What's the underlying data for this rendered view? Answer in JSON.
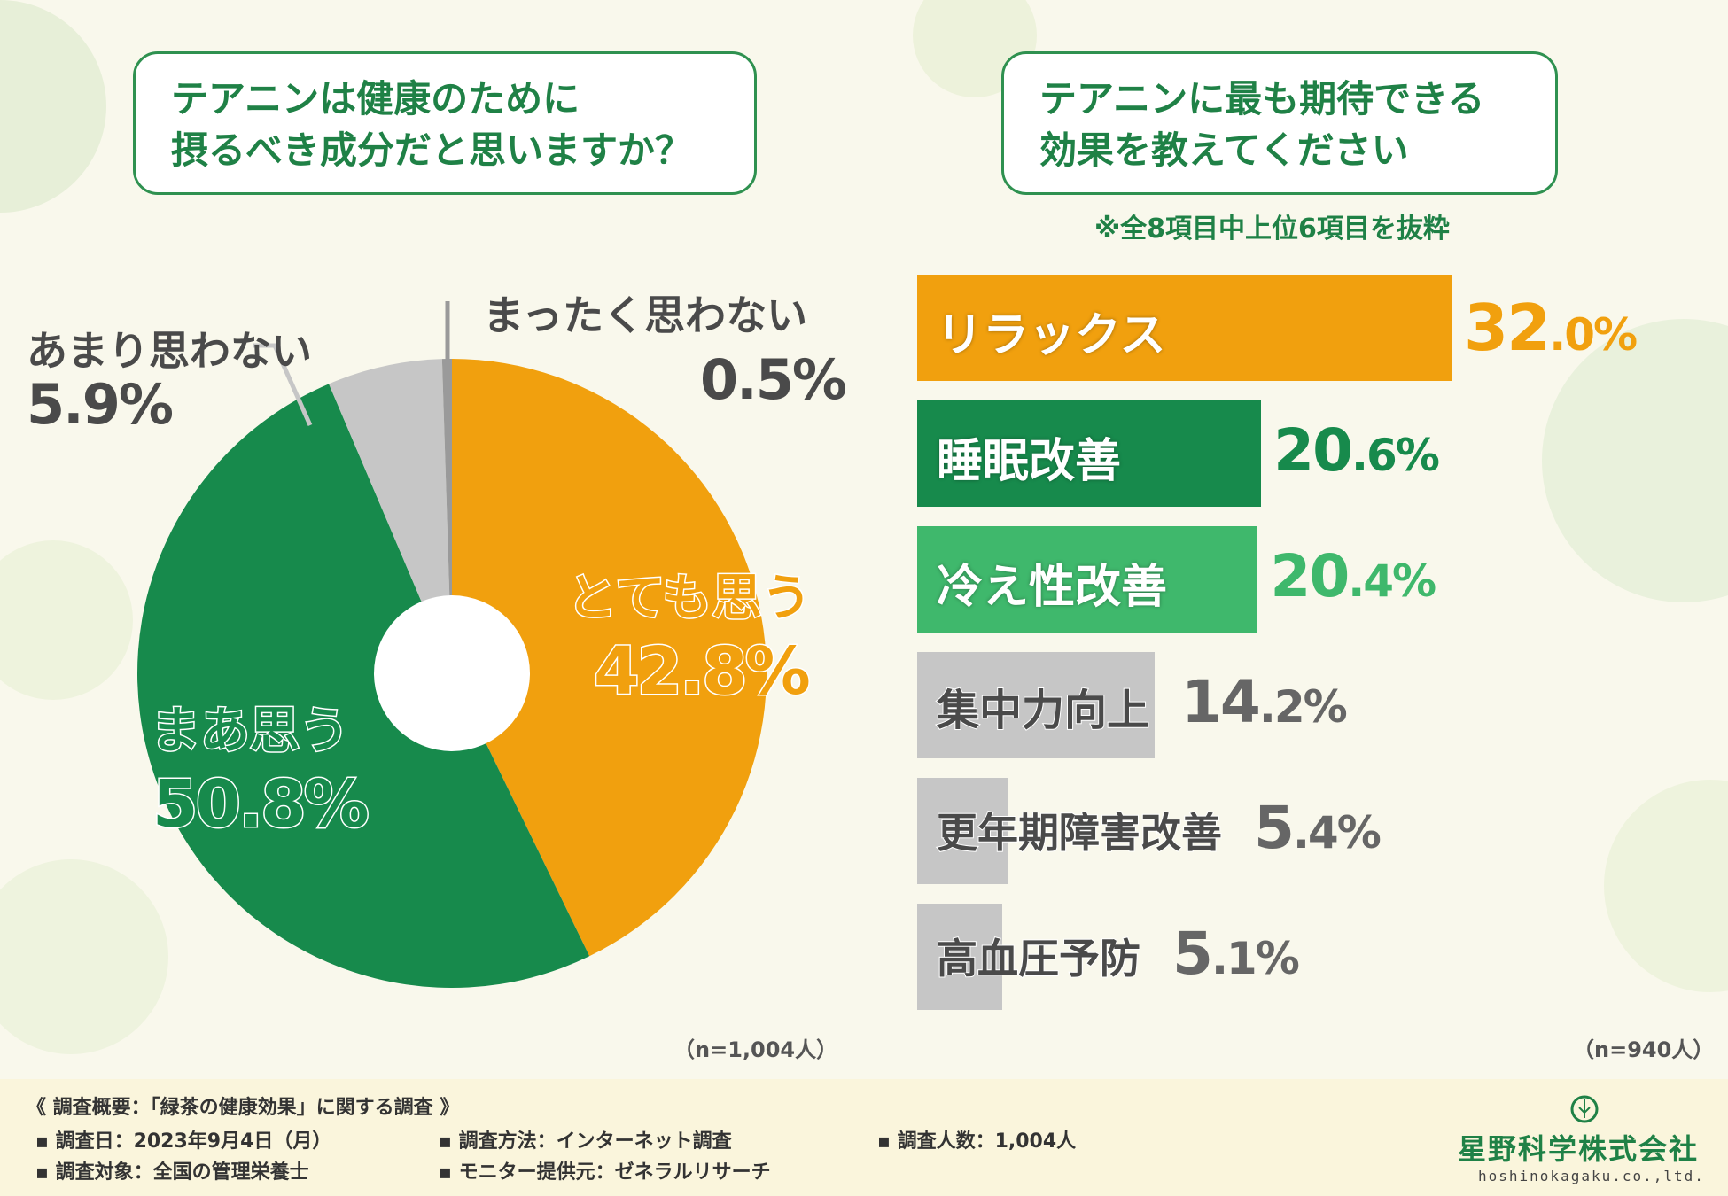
{
  "colors": {
    "green": "#178a4c",
    "orange": "#f1a00e",
    "light_green": "#3fb86c",
    "gray": "#c6c6c6",
    "dark_gray": "#9a9a9a",
    "title_green": "#1f8146"
  },
  "left": {
    "question_lines": [
      "テアニンは健康のために",
      "摂るべき成分だと思いますか？"
    ],
    "n": "（n=1,004人）"
  },
  "right": {
    "question_lines": [
      "テアニンに最も期待できる",
      "効果を教えてください"
    ],
    "note": "※全8項目中上位6項目を抜粋",
    "n": "（n=940人）"
  },
  "chart_data": [
    {
      "type": "pie",
      "title": "テアニンは健康のために摂るべき成分だと思いますか？",
      "slices": [
        {
          "label": "とても思う",
          "value": 42.8,
          "value_text": "42.8%",
          "color": "#f1a00e"
        },
        {
          "label": "まあ思う",
          "value": 50.8,
          "value_text": "50.8%",
          "color": "#178a4c"
        },
        {
          "label": "あまり思わない",
          "value": 5.9,
          "value_text": "5.9%",
          "color": "#c6c6c6"
        },
        {
          "label": "まったく思わない",
          "value": 0.5,
          "value_text": "0.5%",
          "color": "#9a9a9a"
        }
      ],
      "n": "n=1,004人"
    },
    {
      "type": "bar",
      "orientation": "horizontal",
      "title": "テアニンに最も期待できる効果を教えてください",
      "categories": [
        "リラックス",
        "睡眠改善",
        "冷え性改善",
        "集中力向上",
        "更年期障害改善",
        "高血圧予防"
      ],
      "values": [
        32.0,
        20.6,
        20.4,
        14.2,
        5.4,
        5.1
      ],
      "value_texts": [
        "32.0%",
        "20.6%",
        "20.4%",
        "14.2%",
        "5.4%",
        "5.1%"
      ],
      "colors": [
        "#f1a00e",
        "#178a4c",
        "#3fb86c",
        "#c6c6c6",
        "#c6c6c6",
        "#c6c6c6"
      ],
      "label_colors": [
        "#ffffff",
        "#ffffff",
        "#ffffff",
        "#4a4a4a",
        "#4a4a4a",
        "#4a4a4a"
      ],
      "value_colors": [
        "#f1a00e",
        "#178a4c",
        "#3fb86c",
        "#666666",
        "#666666",
        "#666666"
      ],
      "n": "n=940人"
    }
  ],
  "footer": {
    "heading": "《 調査概要：「緑茶の健康効果」に関する調査 》",
    "items": [
      "▪ 調査日：2023年9月4日（月）",
      "▪ 調査方法：インターネット調査",
      "▪ 調査人数：1,004人",
      "▪ 調査対象：全国の管理栄養士",
      "▪ モニター提供元：ゼネラルリサーチ"
    ],
    "company": "星野科学株式会社",
    "company_url": "hoshinokagaku.co.,ltd."
  }
}
